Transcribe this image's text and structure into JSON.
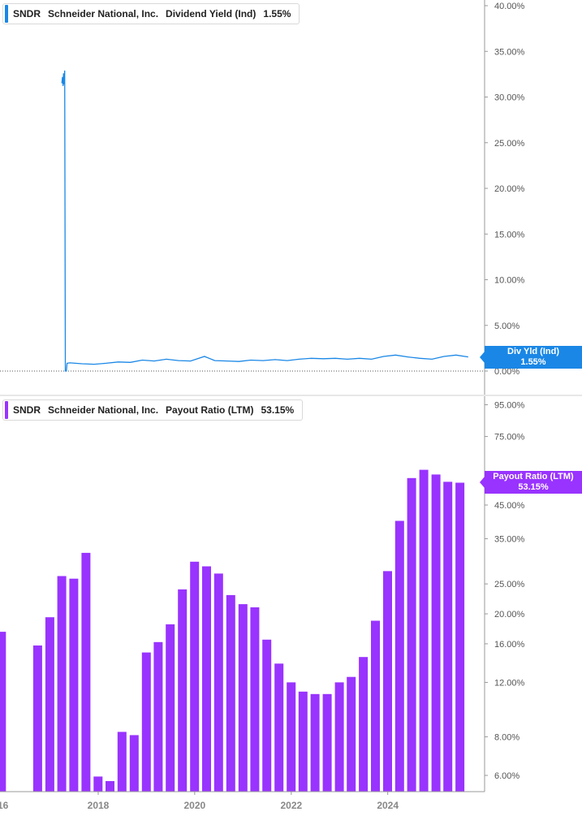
{
  "colors": {
    "yield": "#1a87e6",
    "payout": "#9933ff",
    "axis": "#888888",
    "text": "#555555"
  },
  "top_legend": {
    "symbol": "SNDR",
    "company": "Schneider National, Inc.",
    "metric": "Dividend Yield (Ind)",
    "value": "1.55%"
  },
  "bottom_legend": {
    "symbol": "SNDR",
    "company": "Schneider National, Inc.",
    "metric": "Payout Ratio (LTM)",
    "value": "53.15%"
  },
  "top_flag": {
    "label": "Div Yld (Ind)",
    "value": "1.55%"
  },
  "bottom_flag": {
    "label": "Payout Ratio (LTM)",
    "value": "53.15%"
  },
  "chart_data": [
    {
      "type": "line",
      "series": [
        {
          "name": "Dividend Yield (Ind)",
          "points": [
            [
              "2017-04-01",
              31.5
            ],
            [
              "2017-04-06",
              32.2
            ],
            [
              "2017-04-10",
              31.2
            ],
            [
              "2017-04-14",
              32.6
            ],
            [
              "2017-04-18",
              31.4
            ],
            [
              "2017-04-22",
              32.9
            ],
            [
              "2017-04-27",
              0
            ],
            [
              "2017-05-05",
              0
            ],
            [
              "2017-05-10",
              0.85
            ],
            [
              "2017-06-01",
              0.9
            ],
            [
              "2017-09-01",
              0.8
            ],
            [
              "2017-12-01",
              0.75
            ],
            [
              "2018-03-01",
              0.85
            ],
            [
              "2018-06-01",
              1.0
            ],
            [
              "2018-09-01",
              0.95
            ],
            [
              "2018-12-01",
              1.2
            ],
            [
              "2019-03-01",
              1.1
            ],
            [
              "2019-06-01",
              1.3
            ],
            [
              "2019-09-01",
              1.15
            ],
            [
              "2019-12-01",
              1.1
            ],
            [
              "2020-03-15",
              1.6
            ],
            [
              "2020-06-01",
              1.15
            ],
            [
              "2020-09-01",
              1.1
            ],
            [
              "2020-12-01",
              1.05
            ],
            [
              "2021-03-01",
              1.2
            ],
            [
              "2021-06-01",
              1.15
            ],
            [
              "2021-09-01",
              1.25
            ],
            [
              "2021-12-01",
              1.15
            ],
            [
              "2022-03-01",
              1.3
            ],
            [
              "2022-06-01",
              1.4
            ],
            [
              "2022-09-01",
              1.35
            ],
            [
              "2022-12-01",
              1.4
            ],
            [
              "2023-03-01",
              1.3
            ],
            [
              "2023-06-01",
              1.4
            ],
            [
              "2023-09-01",
              1.3
            ],
            [
              "2023-12-01",
              1.6
            ],
            [
              "2024-03-01",
              1.75
            ],
            [
              "2024-06-01",
              1.55
            ],
            [
              "2024-09-01",
              1.4
            ],
            [
              "2024-12-01",
              1.3
            ],
            [
              "2025-03-01",
              1.6
            ],
            [
              "2025-06-01",
              1.75
            ],
            [
              "2025-09-01",
              1.55
            ]
          ]
        }
      ],
      "ylim": [
        0,
        40
      ],
      "yticks": [
        0,
        5,
        10,
        15,
        20,
        25,
        30,
        35,
        40
      ],
      "ytick_labels": [
        "0.00%",
        "5.00%",
        "10.00%",
        "15.00%",
        "20.00%",
        "25.00%",
        "30.00%",
        "35.00%",
        "40.00%"
      ],
      "xlim": [
        "2016-01-01",
        "2025-12-31"
      ]
    },
    {
      "type": "bar",
      "y_scale": "log",
      "series": [
        {
          "name": "Payout Ratio (LTM)",
          "points": [
            [
              "2015-12-31",
              17.5
            ],
            [
              "2016-09-30",
              15.8
            ],
            [
              "2016-12-31",
              19.5
            ],
            [
              "2017-03-31",
              26.5
            ],
            [
              "2017-06-30",
              26.0
            ],
            [
              "2017-09-30",
              31.5
            ],
            [
              "2017-12-31",
              5.95
            ],
            [
              "2018-03-31",
              5.75
            ],
            [
              "2018-06-30",
              8.3
            ],
            [
              "2018-09-30",
              8.1
            ],
            [
              "2018-12-31",
              15.0
            ],
            [
              "2019-03-31",
              16.2
            ],
            [
              "2019-06-30",
              18.5
            ],
            [
              "2019-09-30",
              24.0
            ],
            [
              "2019-12-31",
              29.5
            ],
            [
              "2020-03-31",
              28.5
            ],
            [
              "2020-06-30",
              27.0
            ],
            [
              "2020-09-30",
              23.0
            ],
            [
              "2020-12-31",
              21.5
            ],
            [
              "2021-03-31",
              21.0
            ],
            [
              "2021-06-30",
              16.5
            ],
            [
              "2021-09-30",
              13.8
            ],
            [
              "2021-12-31",
              12.0
            ],
            [
              "2022-03-31",
              11.2
            ],
            [
              "2022-06-30",
              11.0
            ],
            [
              "2022-09-30",
              11.0
            ],
            [
              "2022-12-31",
              12.0
            ],
            [
              "2023-03-31",
              12.5
            ],
            [
              "2023-06-30",
              14.5
            ],
            [
              "2023-09-30",
              19.0
            ],
            [
              "2023-12-31",
              27.5
            ],
            [
              "2024-03-31",
              40.0
            ],
            [
              "2024-06-30",
              55.0
            ],
            [
              "2024-09-30",
              58.5
            ],
            [
              "2024-12-31",
              56.5
            ],
            [
              "2025-03-31",
              53.5
            ],
            [
              "2025-06-30",
              53.15
            ]
          ]
        }
      ],
      "yticks": [
        6,
        8,
        12,
        16,
        20,
        25,
        35,
        45,
        75,
        95
      ],
      "ytick_labels": [
        "6.00%",
        "8.00%",
        "12.00%",
        "16.00%",
        "20.00%",
        "25.00%",
        "35.00%",
        "45.00%",
        "75.00%",
        "95.00%"
      ],
      "xticks": [
        "2018-01-01",
        "2020-01-01",
        "2022-01-01",
        "2024-01-01"
      ],
      "xtick_labels": [
        "2018",
        "2020",
        "2022",
        "2024"
      ],
      "partial_tick_label": "16"
    }
  ]
}
